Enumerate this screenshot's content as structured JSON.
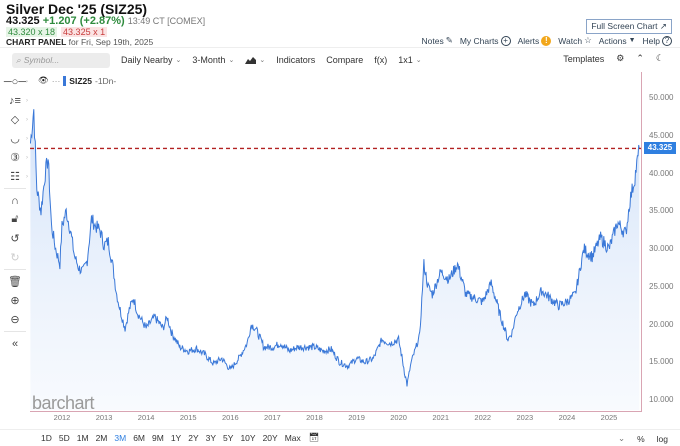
{
  "header": {
    "title": "Silver Dec '25 (SIZ25)",
    "last": "43.325",
    "change": "+1.207 (+2.87%)",
    "time": "13:49 CT [COMEX]",
    "bid": "43.320 x 18",
    "ask": "43.325 x 1",
    "panel_label": "CHART PANEL",
    "panel_date": "for Fri, Sep 19th, 2025",
    "fullscreen_label": "Full Screen Chart",
    "nav": {
      "notes": "Notes",
      "my_charts": "My Charts",
      "alerts": "Alerts",
      "watch": "Watch",
      "actions": "Actions",
      "help": "Help"
    }
  },
  "toolbar": {
    "search_placeholder": "Symbol...",
    "contract": "Daily Nearby",
    "period": "3-Month",
    "chart_type_icon": "mountain-chart-icon",
    "indicators": "Indicators",
    "compare": "Compare",
    "fx": "f(x)",
    "layout": "1x1",
    "templates": "Templates"
  },
  "legend": {
    "symbol": "SIZ25",
    "suffix": "-1Dn-"
  },
  "left_tools": [
    "crosshair-icon",
    "text-tools-icon",
    "shapes-icon",
    "curve-icon",
    "numbered-marker-icon",
    "measure-icon",
    "magnet-icon",
    "lock-icon",
    "undo-icon",
    "redo-icon",
    "trash-icon",
    "zoom-in-icon",
    "zoom-out-icon",
    "collapse-icon"
  ],
  "watermark": "barchart",
  "bottom": {
    "ranges": [
      "1D",
      "5D",
      "1M",
      "2M",
      "3M",
      "6M",
      "9M",
      "1Y",
      "2Y",
      "3Y",
      "5Y",
      "10Y",
      "20Y",
      "Max"
    ],
    "selected_range": "3M",
    "percent": "%",
    "log": "log"
  },
  "chart_data": {
    "type": "area",
    "title": "Silver Dec '25 (SIZ25) - Daily Nearby",
    "xlabel": "",
    "ylabel": "",
    "ylim": [
      9,
      51
    ],
    "y_ticks": [
      "50.000",
      "45.000",
      "40.000",
      "35.000",
      "30.000",
      "25.000",
      "20.000",
      "15.000",
      "10.000"
    ],
    "x_ticks": [
      "2012",
      "2013",
      "2014",
      "2015",
      "2016",
      "2017",
      "2018",
      "2019",
      "2020",
      "2021",
      "2022",
      "2023",
      "2024",
      "2025"
    ],
    "last_price": 43.325,
    "last_price_label": "43.325",
    "reference_line": {
      "value": 43.325,
      "style": "dashed",
      "color": "#b22222"
    },
    "line_color": "#3a78d8",
    "fill_color": "#dbe8fa",
    "grid": false,
    "series": [
      {
        "name": "SIZ25",
        "x": [
          2011.25,
          2011.33,
          2011.4,
          2011.5,
          2011.6,
          2011.67,
          2011.75,
          2011.85,
          2011.95,
          2012.0,
          2012.1,
          2012.2,
          2012.3,
          2012.4,
          2012.5,
          2012.6,
          2012.7,
          2012.8,
          2012.9,
          2013.0,
          2013.1,
          2013.2,
          2013.3,
          2013.4,
          2013.5,
          2013.6,
          2013.7,
          2013.8,
          2013.9,
          2014.0,
          2014.2,
          2014.4,
          2014.5,
          2014.6,
          2014.8,
          2015.0,
          2015.2,
          2015.4,
          2015.6,
          2015.8,
          2016.0,
          2016.2,
          2016.4,
          2016.5,
          2016.6,
          2016.8,
          2017.0,
          2017.2,
          2017.4,
          2017.6,
          2017.8,
          2018.0,
          2018.2,
          2018.4,
          2018.6,
          2018.8,
          2019.0,
          2019.2,
          2019.4,
          2019.6,
          2019.8,
          2020.0,
          2020.2,
          2020.3,
          2020.5,
          2020.6,
          2020.7,
          2020.8,
          2021.0,
          2021.2,
          2021.4,
          2021.6,
          2021.8,
          2022.0,
          2022.2,
          2022.4,
          2022.6,
          2022.7,
          2022.8,
          2023.0,
          2023.2,
          2023.4,
          2023.6,
          2023.8,
          2024.0,
          2024.2,
          2024.4,
          2024.6,
          2024.8,
          2025.0,
          2025.2,
          2025.4,
          2025.5,
          2025.6,
          2025.72
        ],
        "values": [
          44.0,
          48.5,
          38.0,
          35.0,
          40.0,
          42.0,
          33.0,
          30.0,
          28.0,
          33.0,
          35.0,
          32.5,
          29.0,
          27.5,
          27.0,
          28.5,
          34.0,
          33.0,
          32.5,
          30.5,
          31.0,
          28.0,
          24.0,
          21.5,
          19.5,
          22.0,
          23.5,
          21.5,
          20.5,
          19.5,
          21.0,
          19.5,
          21.0,
          19.0,
          17.0,
          16.5,
          16.8,
          16.0,
          14.8,
          15.5,
          14.0,
          15.5,
          17.5,
          20.0,
          19.5,
          17.0,
          17.0,
          17.5,
          16.5,
          17.0,
          17.0,
          17.0,
          16.5,
          16.7,
          15.0,
          14.5,
          15.5,
          15.0,
          15.5,
          18.0,
          17.5,
          18.0,
          12.0,
          15.0,
          18.5,
          28.0,
          25.0,
          24.0,
          27.0,
          26.0,
          28.0,
          24.0,
          23.5,
          23.0,
          25.5,
          21.5,
          18.0,
          19.0,
          21.5,
          24.0,
          22.5,
          24.5,
          23.5,
          22.5,
          23.0,
          24.0,
          30.0,
          29.0,
          31.5,
          30.0,
          33.5,
          32.0,
          36.5,
          39.0,
          43.3
        ]
      }
    ]
  }
}
